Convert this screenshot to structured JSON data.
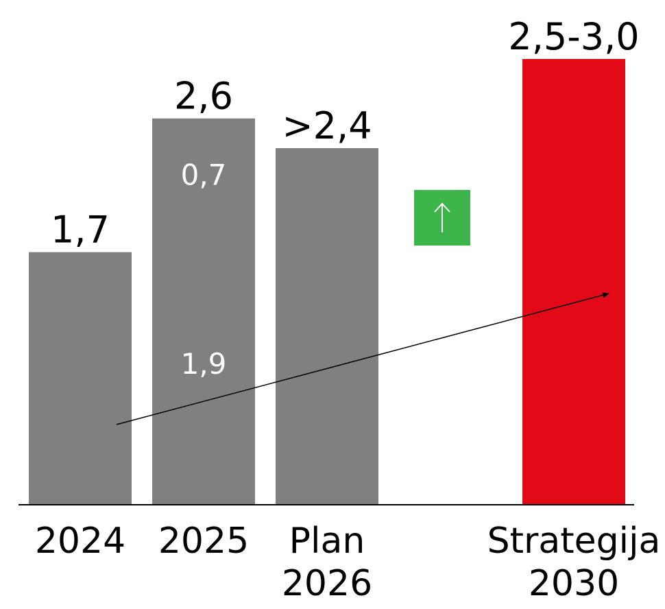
{
  "chart_data": {
    "type": "bar",
    "categories": [
      "2024",
      "2025",
      "Plan 2026",
      "Strategija 2030"
    ],
    "category_lines": [
      [
        "2024"
      ],
      [
        "2025"
      ],
      [
        "Plan",
        "2026"
      ],
      [
        "Strategija",
        "2030"
      ]
    ],
    "values": [
      1.7,
      2.6,
      2.4,
      3.0
    ],
    "value_labels": [
      "1,7",
      "2,6",
      ">2,4",
      "2,5-3,0"
    ],
    "stacked_2025": {
      "segments": [
        {
          "value": 1.9,
          "label": "1,9"
        },
        {
          "value": 0.7,
          "label": "0,7"
        }
      ]
    },
    "range_2030": [
      2.5,
      3.0
    ],
    "ylim": [
      0,
      3.0
    ],
    "title": "",
    "xlabel": "",
    "ylabel": "",
    "grid": false,
    "legend": "none",
    "trend_arrow": true,
    "indicator": {
      "icon": "up-arrow-icon",
      "color": "#3db54a"
    },
    "colors": {
      "bar": "#808080",
      "highlight": "#e20a16",
      "axis": "#000000",
      "segment_text": "#ffffff"
    }
  }
}
